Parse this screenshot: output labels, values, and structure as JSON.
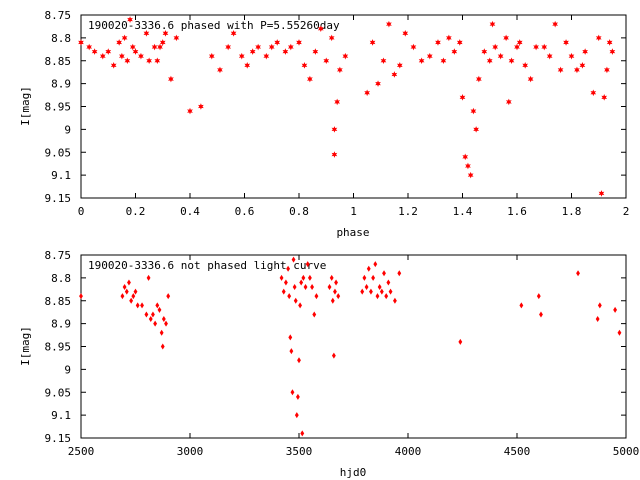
{
  "colors": {
    "points": "#ff0000",
    "frame": "#000000",
    "background": "#ffffff"
  },
  "chart_data": [
    {
      "type": "scatter",
      "title": "190020-3336.6 phased with P=5.55260day",
      "xlabel": "phase",
      "ylabel": "I[mag]",
      "xlim": [
        0,
        2
      ],
      "ylim": [
        8.75,
        9.15
      ],
      "y_inverted": true,
      "xticks": [
        "0",
        "0.2",
        "0.4",
        "0.6",
        "0.8",
        "1",
        "1.2",
        "1.4",
        "1.6",
        "1.8",
        "2"
      ],
      "yticks": [
        "8.75",
        "8.8",
        "8.85",
        "8.9",
        "8.95",
        "9",
        "9.05",
        "9.1",
        "9.15"
      ],
      "grid": false,
      "marker": "star",
      "series": [
        {
          "points": [
            [
              0.0,
              8.81
            ],
            [
              0.03,
              8.82
            ],
            [
              0.05,
              8.83
            ],
            [
              0.08,
              8.84
            ],
            [
              0.1,
              8.83
            ],
            [
              0.12,
              8.86
            ],
            [
              0.14,
              8.81
            ],
            [
              0.15,
              8.84
            ],
            [
              0.16,
              8.8
            ],
            [
              0.17,
              8.85
            ],
            [
              0.18,
              8.76
            ],
            [
              0.19,
              8.82
            ],
            [
              0.2,
              8.83
            ],
            [
              0.22,
              8.84
            ],
            [
              0.24,
              8.79
            ],
            [
              0.25,
              8.85
            ],
            [
              0.27,
              8.82
            ],
            [
              0.28,
              8.85
            ],
            [
              0.29,
              8.82
            ],
            [
              0.3,
              8.81
            ],
            [
              0.31,
              8.79
            ],
            [
              0.33,
              8.89
            ],
            [
              0.35,
              8.8
            ],
            [
              0.4,
              8.96
            ],
            [
              0.44,
              8.95
            ],
            [
              0.48,
              8.84
            ],
            [
              0.51,
              8.87
            ],
            [
              0.54,
              8.82
            ],
            [
              0.56,
              8.79
            ],
            [
              0.59,
              8.84
            ],
            [
              0.61,
              8.86
            ],
            [
              0.63,
              8.83
            ],
            [
              0.65,
              8.82
            ],
            [
              0.68,
              8.84
            ],
            [
              0.7,
              8.82
            ],
            [
              0.72,
              8.81
            ],
            [
              0.75,
              8.83
            ],
            [
              0.77,
              8.82
            ],
            [
              0.8,
              8.81
            ],
            [
              0.82,
              8.86
            ],
            [
              0.84,
              8.89
            ],
            [
              0.86,
              8.83
            ],
            [
              0.88,
              8.78
            ],
            [
              0.9,
              8.85
            ],
            [
              0.92,
              8.8
            ],
            [
              0.93,
              9.0
            ],
            [
              0.93,
              9.055
            ],
            [
              0.94,
              8.94
            ],
            [
              0.95,
              8.87
            ],
            [
              0.97,
              8.84
            ],
            [
              1.05,
              8.92
            ],
            [
              1.07,
              8.81
            ],
            [
              1.09,
              8.9
            ],
            [
              1.11,
              8.85
            ],
            [
              1.13,
              8.77
            ],
            [
              1.15,
              8.88
            ],
            [
              1.17,
              8.86
            ],
            [
              1.19,
              8.79
            ],
            [
              1.22,
              8.82
            ],
            [
              1.25,
              8.85
            ],
            [
              1.28,
              8.84
            ],
            [
              1.31,
              8.81
            ],
            [
              1.33,
              8.85
            ],
            [
              1.35,
              8.8
            ],
            [
              1.37,
              8.83
            ],
            [
              1.39,
              8.81
            ],
            [
              1.4,
              8.93
            ],
            [
              1.41,
              9.06
            ],
            [
              1.42,
              9.08
            ],
            [
              1.43,
              9.1
            ],
            [
              1.44,
              8.96
            ],
            [
              1.45,
              9.0
            ],
            [
              1.46,
              8.89
            ],
            [
              1.48,
              8.83
            ],
            [
              1.5,
              8.85
            ],
            [
              1.51,
              8.77
            ],
            [
              1.52,
              8.82
            ],
            [
              1.54,
              8.84
            ],
            [
              1.56,
              8.8
            ],
            [
              1.57,
              8.94
            ],
            [
              1.58,
              8.85
            ],
            [
              1.6,
              8.82
            ],
            [
              1.61,
              8.81
            ],
            [
              1.63,
              8.86
            ],
            [
              1.65,
              8.89
            ],
            [
              1.67,
              8.82
            ],
            [
              1.7,
              8.82
            ],
            [
              1.72,
              8.84
            ],
            [
              1.74,
              8.77
            ],
            [
              1.76,
              8.87
            ],
            [
              1.78,
              8.81
            ],
            [
              1.8,
              8.84
            ],
            [
              1.82,
              8.87
            ],
            [
              1.84,
              8.86
            ],
            [
              1.85,
              8.83
            ],
            [
              1.88,
              8.92
            ],
            [
              1.9,
              8.8
            ],
            [
              1.91,
              9.14
            ],
            [
              1.92,
              8.93
            ],
            [
              1.93,
              8.87
            ],
            [
              1.94,
              8.81
            ],
            [
              1.95,
              8.83
            ]
          ]
        }
      ]
    },
    {
      "type": "scatter",
      "title": "190020-3336.6 not phased light curve",
      "xlabel": "hjd0",
      "ylabel": "I[mag]",
      "xlim": [
        2500,
        5000
      ],
      "ylim": [
        8.75,
        9.15
      ],
      "y_inverted": true,
      "xticks": [
        "2500",
        "3000",
        "3500",
        "4000",
        "4500",
        "5000"
      ],
      "yticks": [
        "8.75",
        "8.8",
        "8.85",
        "8.9",
        "8.95",
        "9",
        "9.05",
        "9.1",
        "9.15"
      ],
      "grid": false,
      "marker": "diamond",
      "series": [
        {
          "points": [
            [
              2500,
              8.84
            ],
            [
              2690,
              8.84
            ],
            [
              2700,
              8.82
            ],
            [
              2710,
              8.83
            ],
            [
              2720,
              8.81
            ],
            [
              2730,
              8.85
            ],
            [
              2740,
              8.84
            ],
            [
              2750,
              8.83
            ],
            [
              2760,
              8.86
            ],
            [
              2780,
              8.86
            ],
            [
              2800,
              8.88
            ],
            [
              2810,
              8.8
            ],
            [
              2820,
              8.89
            ],
            [
              2830,
              8.88
            ],
            [
              2840,
              8.9
            ],
            [
              2850,
              8.86
            ],
            [
              2860,
              8.87
            ],
            [
              2870,
              8.92
            ],
            [
              2875,
              8.95
            ],
            [
              2880,
              8.89
            ],
            [
              2890,
              8.9
            ],
            [
              2900,
              8.84
            ],
            [
              3420,
              8.8
            ],
            [
              3430,
              8.83
            ],
            [
              3440,
              8.81
            ],
            [
              3450,
              8.78
            ],
            [
              3455,
              8.84
            ],
            [
              3460,
              8.93
            ],
            [
              3465,
              8.96
            ],
            [
              3470,
              9.05
            ],
            [
              3475,
              8.76
            ],
            [
              3480,
              8.82
            ],
            [
              3485,
              8.85
            ],
            [
              3490,
              9.1
            ],
            [
              3495,
              9.06
            ],
            [
              3500,
              8.98
            ],
            [
              3505,
              8.86
            ],
            [
              3510,
              8.81
            ],
            [
              3515,
              9.14
            ],
            [
              3520,
              8.8
            ],
            [
              3530,
              8.82
            ],
            [
              3540,
              8.77
            ],
            [
              3550,
              8.8
            ],
            [
              3560,
              8.82
            ],
            [
              3570,
              8.88
            ],
            [
              3580,
              8.84
            ],
            [
              3640,
              8.82
            ],
            [
              3650,
              8.8
            ],
            [
              3655,
              8.85
            ],
            [
              3660,
              8.97
            ],
            [
              3665,
              8.83
            ],
            [
              3670,
              8.81
            ],
            [
              3680,
              8.84
            ],
            [
              3790,
              8.83
            ],
            [
              3800,
              8.8
            ],
            [
              3810,
              8.82
            ],
            [
              3820,
              8.78
            ],
            [
              3830,
              8.83
            ],
            [
              3840,
              8.8
            ],
            [
              3850,
              8.77
            ],
            [
              3860,
              8.84
            ],
            [
              3870,
              8.82
            ],
            [
              3880,
              8.83
            ],
            [
              3890,
              8.79
            ],
            [
              3900,
              8.84
            ],
            [
              3910,
              8.81
            ],
            [
              3920,
              8.83
            ],
            [
              3940,
              8.85
            ],
            [
              3960,
              8.79
            ],
            [
              4240,
              8.94
            ],
            [
              4520,
              8.86
            ],
            [
              4600,
              8.84
            ],
            [
              4610,
              8.88
            ],
            [
              4780,
              8.79
            ],
            [
              4870,
              8.89
            ],
            [
              4880,
              8.86
            ],
            [
              4950,
              8.87
            ],
            [
              4970,
              8.92
            ]
          ]
        }
      ]
    }
  ]
}
